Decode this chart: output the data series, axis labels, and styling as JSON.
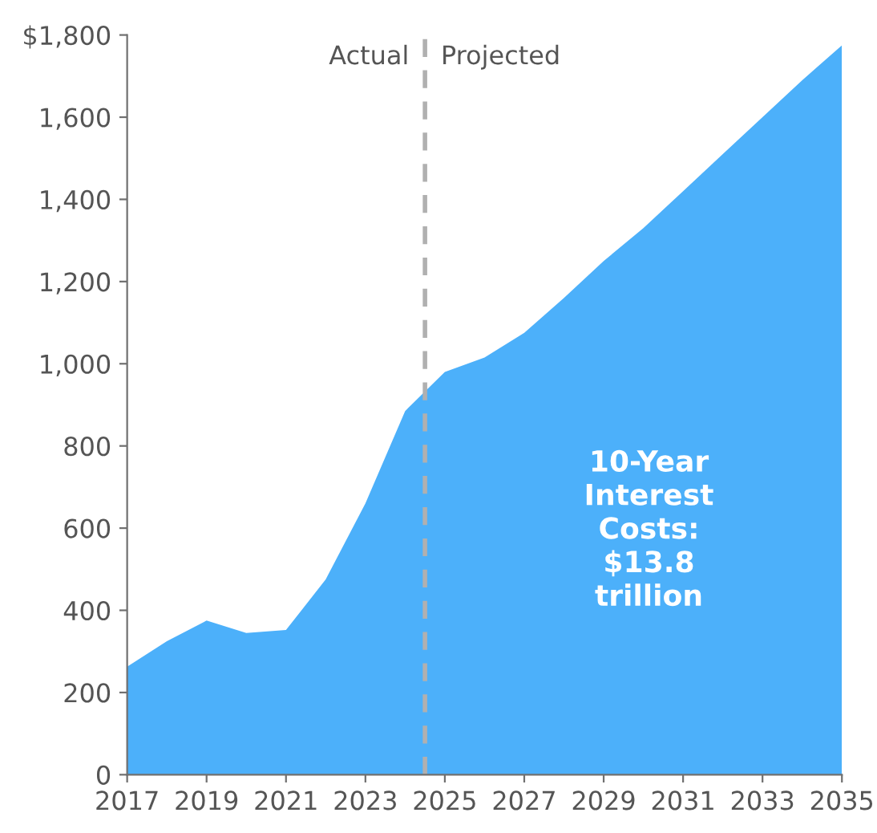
{
  "chart_data": {
    "type": "area",
    "x": [
      2017,
      2018,
      2019,
      2020,
      2021,
      2022,
      2023,
      2024,
      2025,
      2026,
      2027,
      2028,
      2029,
      2030,
      2031,
      2032,
      2033,
      2034,
      2035
    ],
    "series": [
      {
        "color": "#4cb0fa",
        "values": [
          263,
          325,
          375,
          345,
          352,
          475,
          660,
          885,
          980,
          1015,
          1075,
          1160,
          1250,
          1330,
          1420,
          1510,
          1600,
          1690,
          1775
        ]
      }
    ],
    "xlim": [
      2017,
      2035
    ],
    "xticks": [
      2017,
      2019,
      2021,
      2023,
      2025,
      2027,
      2029,
      2031,
      2033,
      2035
    ],
    "ylim": [
      0,
      1800
    ],
    "yticks": [
      0,
      200,
      400,
      600,
      800,
      {
        "value": 1000,
        "label": "1,000"
      },
      {
        "value": 1200,
        "label": "1,200"
      },
      {
        "value": 1400,
        "label": "1,400"
      },
      {
        "value": 1600,
        "label": "1,600"
      },
      {
        "value": 1800,
        "label": "$1,800"
      }
    ],
    "ref_lines": [
      {
        "axis": "x",
        "value": 2024.5,
        "color": "#b0b0b0",
        "line_style": "dashed"
      }
    ],
    "annotations": [
      "Actual",
      "Projected",
      "10-Year\nInterest\nCosts:\n$13.8\ntrillion"
    ],
    "grid": false
  }
}
